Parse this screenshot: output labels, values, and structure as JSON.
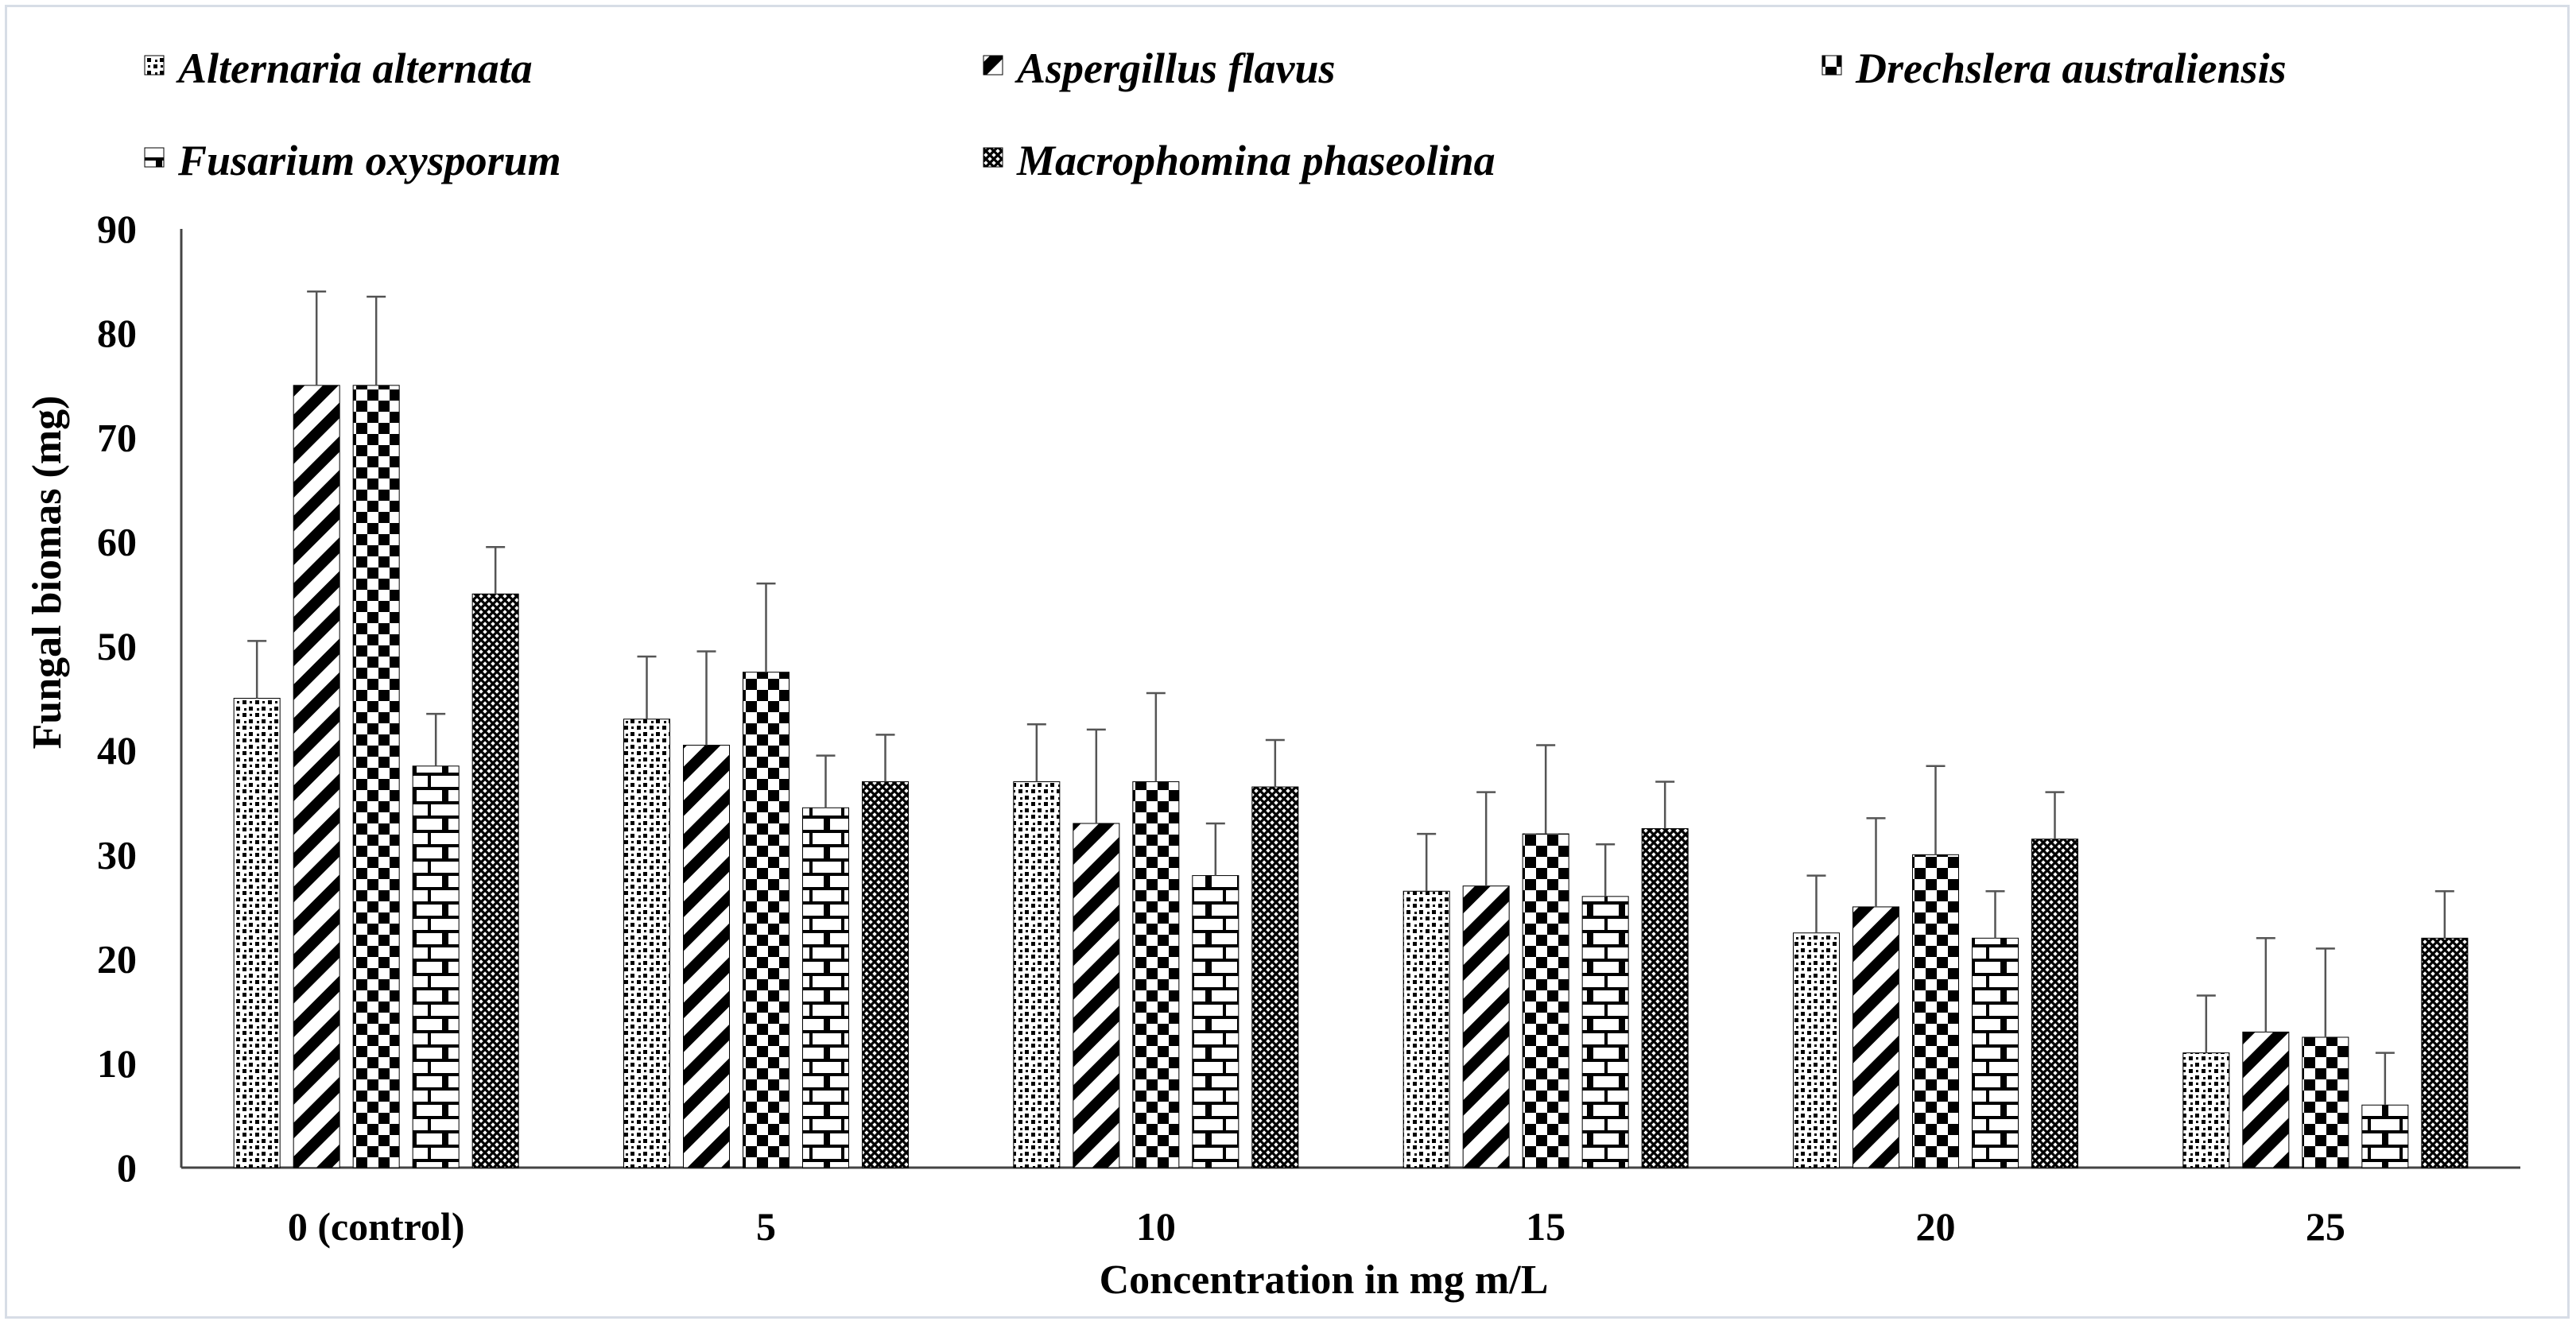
{
  "chart_data": {
    "type": "bar",
    "title": "",
    "xlabel": "Concentration in mg m/L",
    "ylabel": "Fungal biomas (mg)",
    "ylim": [
      0,
      90
    ],
    "yticks": [
      0,
      10,
      20,
      30,
      40,
      50,
      60,
      70,
      80,
      90
    ],
    "categories": [
      "0 (control)",
      "5",
      "10",
      "15",
      "20",
      "25"
    ],
    "legend_position": "top",
    "grid": false,
    "error_bars": true,
    "series": [
      {
        "name": "Alternaria alternata",
        "pattern": "dots",
        "values": [
          45,
          43,
          37,
          26.5,
          22.5,
          11
        ],
        "errors": [
          5.5,
          6,
          5.5,
          5.5,
          5.5,
          5.5
        ]
      },
      {
        "name": "Aspergillus flavus",
        "pattern": "diagonal-stripes",
        "values": [
          75,
          40.5,
          33,
          27,
          25,
          13
        ],
        "errors": [
          9,
          9,
          9,
          9,
          8.5,
          9
        ]
      },
      {
        "name": "Drechslera australiensis",
        "pattern": "checkerboard",
        "values": [
          75,
          47.5,
          37,
          32,
          30,
          12.5
        ],
        "errors": [
          8.5,
          8.5,
          8.5,
          8.5,
          8.5,
          8.5
        ]
      },
      {
        "name": "Fusarium oxysporum",
        "pattern": "brick",
        "values": [
          38.5,
          34.5,
          28,
          26,
          22,
          6
        ],
        "errors": [
          5,
          5,
          5,
          5,
          4.5,
          5
        ]
      },
      {
        "name": "Macrophomina phaseolina",
        "pattern": "crosshatch",
        "values": [
          55,
          37,
          36.5,
          32.5,
          31.5,
          22
        ],
        "errors": [
          4.5,
          4.5,
          4.5,
          4.5,
          4.5,
          4.5
        ]
      }
    ],
    "colors": {
      "fill": "#000000",
      "background": "#ffffff",
      "error_bar": "#555555",
      "axis": "#444444"
    }
  }
}
